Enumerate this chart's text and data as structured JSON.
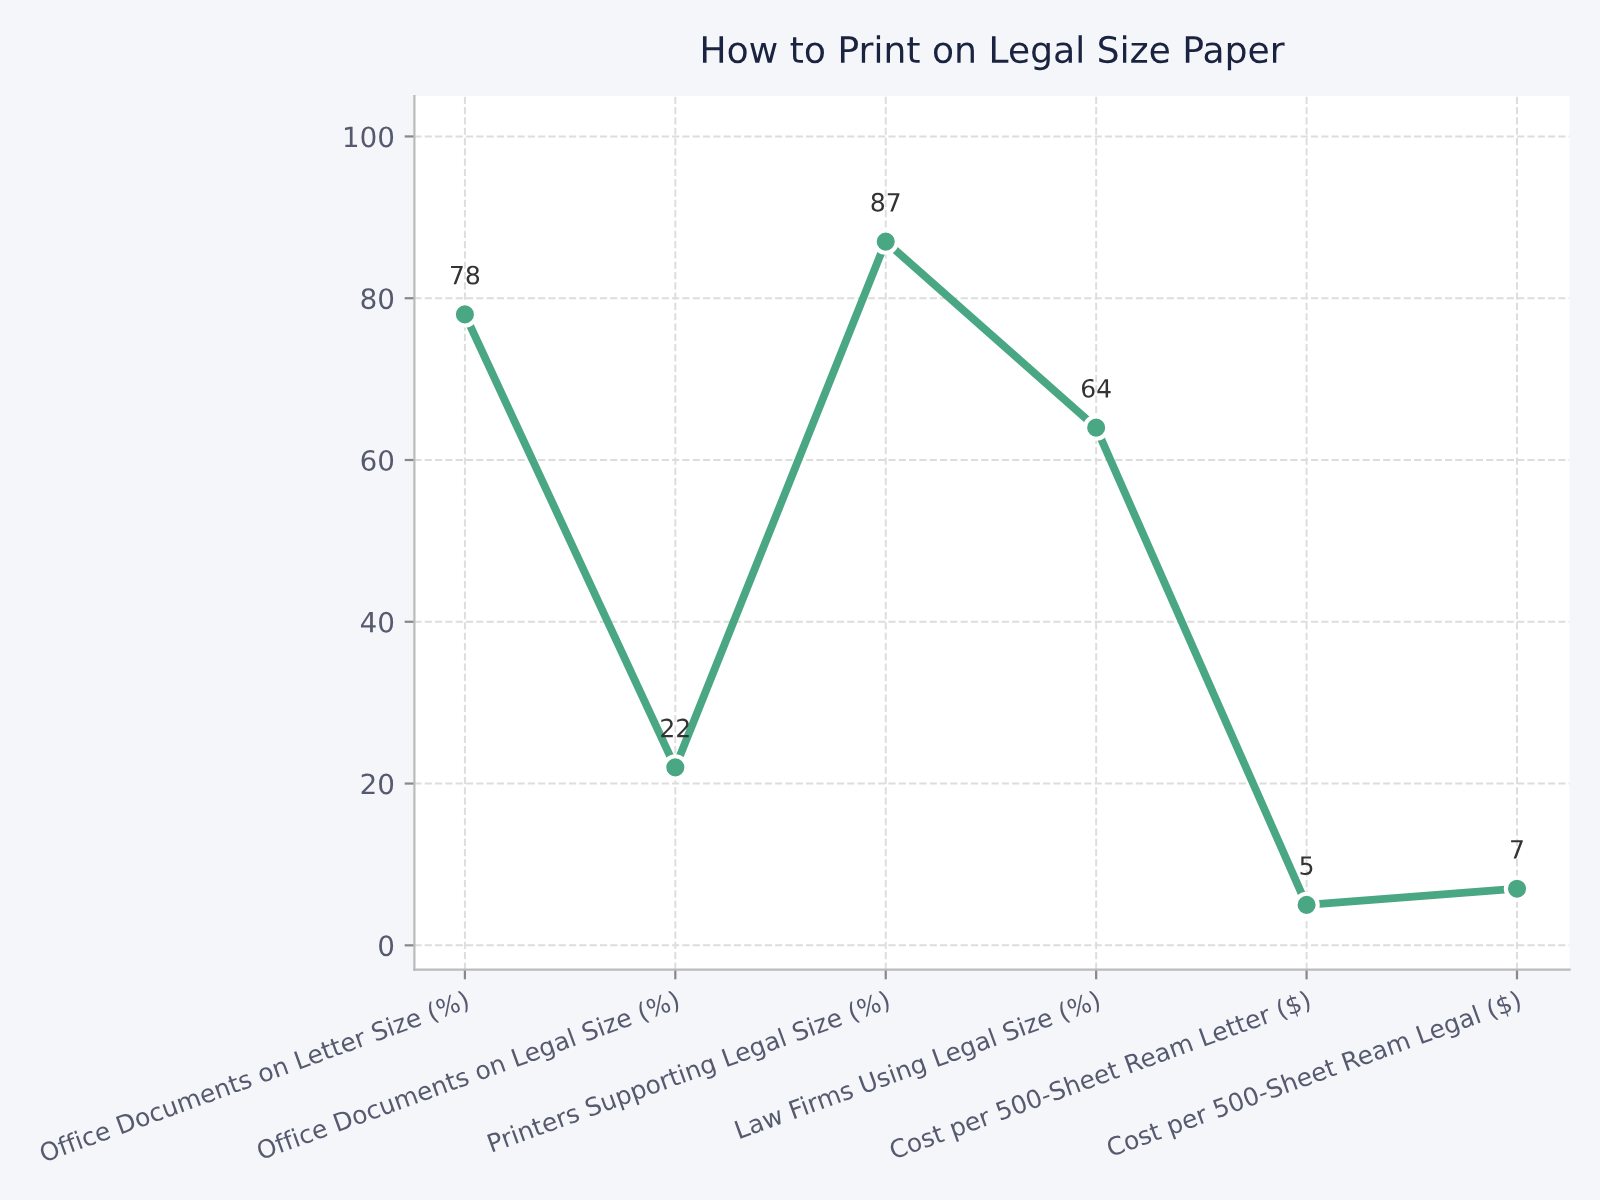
{
  "chart_data": {
    "type": "line",
    "title": "How to Print on Legal Size Paper",
    "categories": [
      "Office Documents on Letter Size (%)",
      "Office Documents on Legal Size (%)",
      "Printers Supporting Legal Size (%)",
      "Law Firms Using Legal Size (%)",
      "Cost per 500-Sheet Ream Letter ($)",
      "Cost per 500-Sheet Ream Legal ($)"
    ],
    "values": [
      78,
      22,
      87,
      64,
      5,
      7
    ],
    "color": "#4aa784",
    "marker": "circle",
    "line_style": "solid",
    "data_labels": true,
    "grid": true,
    "ylim": [
      -3,
      105
    ],
    "yticks": [
      0,
      20,
      40,
      60,
      80,
      100
    ]
  }
}
